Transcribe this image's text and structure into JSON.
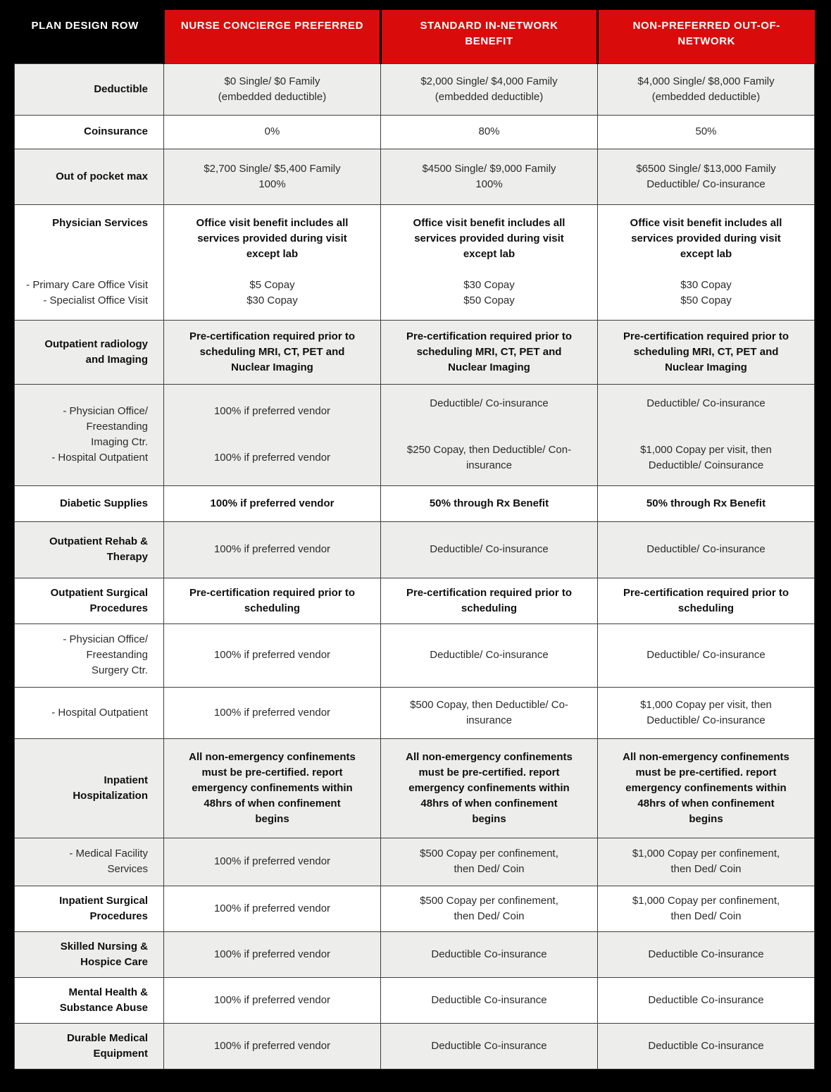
{
  "colors": {
    "header_red": "#da0b0b",
    "shaded_row": "#ededec",
    "table_border": "#3e3e3e",
    "page_black": "#000000"
  },
  "table": {
    "corner_label": "PLAN DESIGN ROW",
    "columns": [
      {
        "id": "nurse-concierge-preferred",
        "lines": [
          "NURSE CONCIERGE PREFERRED"
        ]
      },
      {
        "id": "standard-in-network",
        "lines": [
          "STANDARD IN-NETWORK",
          "BENEFIT"
        ]
      },
      {
        "id": "non-preferred-out-of-network",
        "lines": [
          "NON-PREFERRED OUT-OF-",
          "NETWORK"
        ]
      }
    ],
    "rows": [
      {
        "id": "deductible",
        "shade": "gray",
        "label": {
          "parts": [
            {
              "bold": true,
              "lines": [
                "Deductible"
              ]
            }
          ]
        },
        "cells": [
          {
            "parts": [
              {
                "lines": [
                  "$0 Single/ $0 Family",
                  "(embedded deductible)"
                ]
              }
            ]
          },
          {
            "parts": [
              {
                "lines": [
                  "$2,000 Single/ $4,000 Family",
                  "(embedded deductible)"
                ]
              }
            ]
          },
          {
            "parts": [
              {
                "lines": [
                  "$4,000 Single/ $8,000 Family",
                  "(embedded deductible)"
                ]
              }
            ]
          }
        ]
      },
      {
        "id": "coinsurance",
        "shade": "white",
        "label": {
          "parts": [
            {
              "bold": true,
              "lines": [
                "Coinsurance"
              ]
            }
          ]
        },
        "cells": [
          {
            "parts": [
              {
                "lines": [
                  "0%"
                ]
              }
            ]
          },
          {
            "parts": [
              {
                "lines": [
                  "80%"
                ]
              }
            ]
          },
          {
            "parts": [
              {
                "lines": [
                  "50%"
                ]
              }
            ]
          }
        ]
      },
      {
        "id": "out-of-pocket-max",
        "shade": "gray",
        "label": {
          "parts": [
            {
              "bold": true,
              "lines": [
                "Out of pocket max"
              ]
            }
          ]
        },
        "cells": [
          {
            "parts": [
              {
                "lines": [
                  "$2,700 Single/ $5,400 Family",
                  "100%"
                ]
              }
            ]
          },
          {
            "parts": [
              {
                "lines": [
                  "$4500 Single/ $9,000 Family",
                  "100%"
                ]
              }
            ]
          },
          {
            "parts": [
              {
                "lines": [
                  "$6500 Single/ $13,000 Family",
                  "Deductible/ Co-insurance"
                ]
              }
            ]
          }
        ]
      },
      {
        "id": "physician-services",
        "shade": "white",
        "label": {
          "parts": [
            {
              "bold": true,
              "lines": [
                "Physician Services"
              ]
            },
            {
              "lines": [
                "- Primary Care Office Visit",
                "- Specialist Office Visit"
              ]
            }
          ]
        },
        "cells": [
          {
            "parts": [
              {
                "bold": true,
                "lines": [
                  "Office visit benefit includes all",
                  "services provided during visit",
                  "except lab"
                ]
              },
              {
                "lines": [
                  "$5 Copay",
                  "$30 Copay"
                ]
              }
            ]
          },
          {
            "parts": [
              {
                "bold": true,
                "lines": [
                  "Office visit benefit includes all",
                  "services provided during visit",
                  "except lab"
                ]
              },
              {
                "lines": [
                  "$30 Copay",
                  "$50 Copay"
                ]
              }
            ]
          },
          {
            "parts": [
              {
                "bold": true,
                "lines": [
                  "Office visit benefit includes all",
                  "services provided during visit",
                  "except lab"
                ]
              },
              {
                "lines": [
                  "$30 Copay",
                  "$50 Copay"
                ]
              }
            ]
          }
        ]
      },
      {
        "id": "outpatient-radiology-precert",
        "shade": "gray",
        "label": {
          "parts": [
            {
              "bold": true,
              "lines": [
                "Outpatient radiology",
                "and Imaging"
              ]
            }
          ]
        },
        "cells": [
          {
            "parts": [
              {
                "bold": true,
                "lines": [
                  "Pre-certification required prior to",
                  "scheduling MRI, CT, PET and",
                  "Nuclear Imaging"
                ]
              }
            ]
          },
          {
            "parts": [
              {
                "bold": true,
                "lines": [
                  "Pre-certification required prior to",
                  "scheduling MRI, CT, PET and",
                  "Nuclear Imaging"
                ]
              }
            ]
          },
          {
            "parts": [
              {
                "bold": true,
                "lines": [
                  "Pre-certification required prior to",
                  "scheduling MRI, CT, PET and",
                  "Nuclear Imaging"
                ]
              }
            ]
          }
        ]
      },
      {
        "id": "outpatient-radiology-items",
        "shade": "gray",
        "label": {
          "parts": [
            {
              "lines": [
                "- Physician Office/",
                "Freestanding",
                "Imaging Ctr."
              ]
            },
            {
              "lines": [
                "- Hospital Outpatient"
              ]
            }
          ]
        },
        "cells": [
          {
            "parts": [
              {
                "lines": [
                  "100% if preferred vendor"
                ]
              },
              {
                "lines": [
                  "100% if preferred vendor"
                ]
              }
            ]
          },
          {
            "parts": [
              {
                "lines": [
                  "Deductible/ Co-insurance"
                ]
              },
              {
                "lines": [
                  "$250 Copay, then Deductible/ Con-",
                  "insurance"
                ]
              }
            ]
          },
          {
            "parts": [
              {
                "lines": [
                  "Deductible/ Co-insurance"
                ]
              },
              {
                "lines": [
                  "$1,000 Copay per visit, then",
                  "Deductible/ Coinsurance"
                ]
              }
            ]
          }
        ]
      },
      {
        "id": "diabetic-supplies",
        "shade": "white",
        "label": {
          "parts": [
            {
              "bold": true,
              "lines": [
                "Diabetic Supplies"
              ]
            }
          ]
        },
        "cells": [
          {
            "parts": [
              {
                "bold": true,
                "lines": [
                  "100% if preferred vendor"
                ]
              }
            ]
          },
          {
            "parts": [
              {
                "bold": true,
                "lines": [
                  "50% through Rx Benefit"
                ]
              }
            ]
          },
          {
            "parts": [
              {
                "bold": true,
                "lines": [
                  "50% through Rx Benefit"
                ]
              }
            ]
          }
        ]
      },
      {
        "id": "outpatient-rehab-therapy",
        "shade": "gray",
        "label": {
          "parts": [
            {
              "bold": true,
              "lines": [
                "Outpatient Rehab &",
                "Therapy"
              ]
            }
          ]
        },
        "cells": [
          {
            "parts": [
              {
                "lines": [
                  "100% if preferred vendor"
                ]
              }
            ]
          },
          {
            "parts": [
              {
                "lines": [
                  "Deductible/ Co-insurance"
                ]
              }
            ]
          },
          {
            "parts": [
              {
                "lines": [
                  "Deductible/ Co-insurance"
                ]
              }
            ]
          }
        ]
      },
      {
        "id": "outpatient-surgical-precert",
        "shade": "white",
        "label": {
          "parts": [
            {
              "bold": true,
              "lines": [
                "Outpatient Surgical",
                "Procedures"
              ]
            }
          ]
        },
        "cells": [
          {
            "parts": [
              {
                "bold": true,
                "lines": [
                  "Pre-certification required prior to",
                  "scheduling"
                ]
              }
            ]
          },
          {
            "parts": [
              {
                "bold": true,
                "lines": [
                  "Pre-certification required prior to",
                  "scheduling"
                ]
              }
            ]
          },
          {
            "parts": [
              {
                "bold": true,
                "lines": [
                  "Pre-certification required prior to",
                  "scheduling"
                ]
              }
            ]
          }
        ]
      },
      {
        "id": "outpatient-surgical-office",
        "shade": "white",
        "label": {
          "parts": [
            {
              "lines": [
                "- Physician Office/",
                "Freestanding",
                "Surgery Ctr."
              ]
            }
          ]
        },
        "cells": [
          {
            "parts": [
              {
                "lines": [
                  "100% if preferred vendor"
                ]
              }
            ]
          },
          {
            "parts": [
              {
                "lines": [
                  "Deductible/ Co-insurance"
                ]
              }
            ]
          },
          {
            "parts": [
              {
                "lines": [
                  "Deductible/ Co-insurance"
                ]
              }
            ]
          }
        ]
      },
      {
        "id": "outpatient-surgical-hospital",
        "shade": "white",
        "label": {
          "parts": [
            {
              "lines": [
                "- Hospital Outpatient"
              ]
            }
          ]
        },
        "cells": [
          {
            "parts": [
              {
                "lines": [
                  "100% if preferred vendor"
                ]
              }
            ]
          },
          {
            "parts": [
              {
                "lines": [
                  "$500 Copay, then Deductible/ Co-",
                  "insurance"
                ]
              }
            ]
          },
          {
            "parts": [
              {
                "lines": [
                  "$1,000 Copay per visit, then",
                  "Deductible/ Co-insurance"
                ]
              }
            ]
          }
        ]
      },
      {
        "id": "inpatient-hospitalization",
        "shade": "gray",
        "label": {
          "parts": [
            {
              "bold": true,
              "lines": [
                "Inpatient",
                "Hospitalization"
              ]
            }
          ]
        },
        "cells": [
          {
            "parts": [
              {
                "bold": true,
                "lines": [
                  "All non-emergency confinements",
                  "must be pre-certified. report",
                  "emergency confinements within",
                  "48hrs of when confinement",
                  "begins"
                ]
              }
            ]
          },
          {
            "parts": [
              {
                "bold": true,
                "lines": [
                  "All non-emergency confinements",
                  "must be pre-certified. report",
                  "emergency confinements within",
                  "48hrs of when confinement",
                  "begins"
                ]
              }
            ]
          },
          {
            "parts": [
              {
                "bold": true,
                "lines": [
                  "All non-emergency confinements",
                  "must be pre-certified. report",
                  "emergency confinements within",
                  "48hrs of when confinement",
                  "begins"
                ]
              }
            ]
          }
        ]
      },
      {
        "id": "inpatient-medical-facility",
        "shade": "gray",
        "label": {
          "parts": [
            {
              "lines": [
                "- Medical Facility",
                "Services"
              ]
            }
          ]
        },
        "cells": [
          {
            "parts": [
              {
                "lines": [
                  "100% if preferred vendor"
                ]
              }
            ]
          },
          {
            "parts": [
              {
                "lines": [
                  "$500 Copay per confinement,",
                  "then Ded/ Coin"
                ]
              }
            ]
          },
          {
            "parts": [
              {
                "lines": [
                  "$1,000 Copay per confinement,",
                  "then Ded/ Coin"
                ]
              }
            ]
          }
        ]
      },
      {
        "id": "inpatient-surgical-procedures",
        "shade": "white",
        "label": {
          "parts": [
            {
              "bold": true,
              "lines": [
                "Inpatient Surgical",
                "Procedures"
              ]
            }
          ]
        },
        "cells": [
          {
            "parts": [
              {
                "lines": [
                  "100% if preferred vendor"
                ]
              }
            ]
          },
          {
            "parts": [
              {
                "lines": [
                  "$500 Copay per confinement,",
                  "then Ded/ Coin"
                ]
              }
            ]
          },
          {
            "parts": [
              {
                "lines": [
                  "$1,000 Copay per confinement,",
                  "then Ded/ Coin"
                ]
              }
            ]
          }
        ]
      },
      {
        "id": "skilled-nursing-hospice",
        "shade": "gray",
        "label": {
          "parts": [
            {
              "bold": true,
              "lines": [
                "Skilled Nursing &",
                "Hospice Care"
              ]
            }
          ]
        },
        "cells": [
          {
            "parts": [
              {
                "lines": [
                  "100% if preferred vendor"
                ]
              }
            ]
          },
          {
            "parts": [
              {
                "lines": [
                  "Deductible Co-insurance"
                ]
              }
            ]
          },
          {
            "parts": [
              {
                "lines": [
                  "Deductible Co-insurance"
                ]
              }
            ]
          }
        ]
      },
      {
        "id": "mental-health-substance-abuse",
        "shade": "white",
        "label": {
          "parts": [
            {
              "bold": true,
              "lines": [
                "Mental Health &",
                "Substance Abuse"
              ]
            }
          ]
        },
        "cells": [
          {
            "parts": [
              {
                "lines": [
                  "100% if preferred vendor"
                ]
              }
            ]
          },
          {
            "parts": [
              {
                "lines": [
                  "Deductible Co-insurance"
                ]
              }
            ]
          },
          {
            "parts": [
              {
                "lines": [
                  "Deductible Co-insurance"
                ]
              }
            ]
          }
        ]
      },
      {
        "id": "durable-medical-equipment",
        "shade": "gray",
        "label": {
          "parts": [
            {
              "bold": true,
              "lines": [
                "Durable Medical",
                "Equipment"
              ]
            }
          ]
        },
        "cells": [
          {
            "parts": [
              {
                "lines": [
                  "100% if preferred vendor"
                ]
              }
            ]
          },
          {
            "parts": [
              {
                "lines": [
                  "Deductible Co-insurance"
                ]
              }
            ]
          },
          {
            "parts": [
              {
                "lines": [
                  "Deductible Co-insurance"
                ]
              }
            ]
          }
        ]
      }
    ]
  }
}
